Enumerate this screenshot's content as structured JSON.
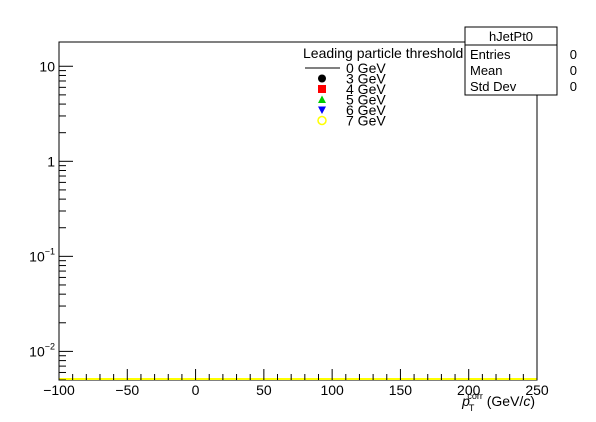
{
  "chart_data": {
    "type": "line",
    "title": "",
    "xlabel": "p_T^corr (GeV/c)",
    "xlabel_parts": {
      "symbol": "p",
      "superscript": "corr",
      "subscript": "T",
      "unit": " (GeV/",
      "unit_var": "c",
      "unit_end": ")"
    },
    "ylabel": "",
    "xlim": [
      -100,
      250
    ],
    "ylim": [
      0.005,
      18
    ],
    "yscale": "log",
    "grid": false,
    "x_ticks": [
      -100,
      -50,
      0,
      50,
      100,
      150,
      200,
      250
    ],
    "x_tick_labels": [
      "−100",
      "−50",
      "0",
      "50",
      "100",
      "150",
      "200",
      "250"
    ],
    "y_ticks": [
      {
        "value": 10,
        "base": "10",
        "exp": ""
      },
      {
        "value": 1,
        "base": "1",
        "exp": ""
      },
      {
        "value": 0.1,
        "base": "10",
        "exp": "−1"
      },
      {
        "value": 0.01,
        "base": "10",
        "exp": "−2"
      }
    ],
    "legend": {
      "title": "Leading particle threshold",
      "placement": "top-center",
      "entries": [
        {
          "label": "0 GeV",
          "marker": "line",
          "color": "#000000"
        },
        {
          "label": "3 GeV",
          "marker": "circle",
          "color": "#000000"
        },
        {
          "label": "4 GeV",
          "marker": "square",
          "color": "#ff0000"
        },
        {
          "label": "5 GeV",
          "marker": "triangle-up",
          "color": "#00cc00"
        },
        {
          "label": "6 GeV",
          "marker": "triangle-down",
          "color": "#0000ff"
        },
        {
          "label": "7 GeV",
          "marker": "open-circle",
          "color": "#ffff00"
        }
      ]
    },
    "series": [
      {
        "name": "7 GeV",
        "color": "#ffff00",
        "x": [
          -100,
          250
        ],
        "values": [
          0,
          0
        ]
      }
    ],
    "stats_box": {
      "title": "hJetPt0",
      "rows": [
        {
          "label": "Entries",
          "value": "0"
        },
        {
          "label": "Mean",
          "value": "0"
        },
        {
          "label": "Std Dev",
          "value": "0"
        }
      ]
    }
  }
}
